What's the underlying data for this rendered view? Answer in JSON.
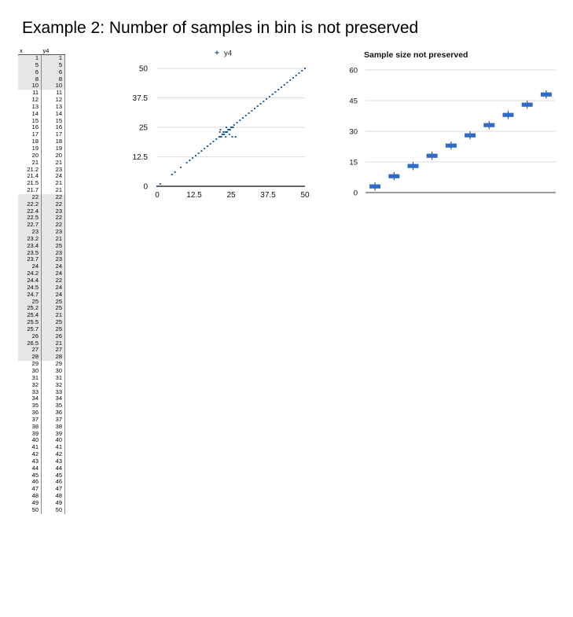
{
  "title": "Example 2: Number of samples in bin is not preserved",
  "table": {
    "headers": [
      "x",
      "y4"
    ],
    "highlight_ranges": [
      [
        0,
        4
      ],
      [
        20,
        43
      ]
    ],
    "rows": [
      [
        "1",
        "1"
      ],
      [
        "5",
        "5"
      ],
      [
        "6",
        "6"
      ],
      [
        "8",
        "8"
      ],
      [
        "10",
        "10"
      ],
      [
        "11",
        "11"
      ],
      [
        "12",
        "12"
      ],
      [
        "13",
        "13"
      ],
      [
        "14",
        "14"
      ],
      [
        "15",
        "15"
      ],
      [
        "16",
        "16"
      ],
      [
        "17",
        "17"
      ],
      [
        "18",
        "18"
      ],
      [
        "19",
        "19"
      ],
      [
        "20",
        "20"
      ],
      [
        "21",
        "21"
      ],
      [
        "21.2",
        "23"
      ],
      [
        "21.4",
        "24"
      ],
      [
        "21.5",
        "21"
      ],
      [
        "21.7",
        "21"
      ],
      [
        "22",
        "22"
      ],
      [
        "22.2",
        "22"
      ],
      [
        "22.4",
        "23"
      ],
      [
        "22.5",
        "22"
      ],
      [
        "22.7",
        "22"
      ],
      [
        "23",
        "23"
      ],
      [
        "23.2",
        "21"
      ],
      [
        "23.4",
        "25"
      ],
      [
        "23.5",
        "23"
      ],
      [
        "23.7",
        "23"
      ],
      [
        "24",
        "24"
      ],
      [
        "24.2",
        "24"
      ],
      [
        "24.4",
        "22"
      ],
      [
        "24.5",
        "24"
      ],
      [
        "24.7",
        "24"
      ],
      [
        "25",
        "25"
      ],
      [
        "25.2",
        "25"
      ],
      [
        "25.4",
        "21"
      ],
      [
        "25.5",
        "25"
      ],
      [
        "25.7",
        "25"
      ],
      [
        "26",
        "26"
      ],
      [
        "26.5",
        "21"
      ],
      [
        "27",
        "27"
      ],
      [
        "28",
        "28"
      ],
      [
        "29",
        "29"
      ],
      [
        "30",
        "30"
      ],
      [
        "31",
        "31"
      ],
      [
        "32",
        "32"
      ],
      [
        "33",
        "33"
      ],
      [
        "34",
        "34"
      ],
      [
        "35",
        "35"
      ],
      [
        "36",
        "36"
      ],
      [
        "37",
        "37"
      ],
      [
        "38",
        "38"
      ],
      [
        "39",
        "39"
      ],
      [
        "40",
        "40"
      ],
      [
        "41",
        "41"
      ],
      [
        "42",
        "42"
      ],
      [
        "43",
        "43"
      ],
      [
        "44",
        "44"
      ],
      [
        "45",
        "45"
      ],
      [
        "46",
        "46"
      ],
      [
        "47",
        "47"
      ],
      [
        "48",
        "48"
      ],
      [
        "49",
        "49"
      ],
      [
        "50",
        "50"
      ]
    ]
  },
  "chart_data": [
    {
      "type": "scatter",
      "title": "",
      "legend": {
        "position": "top",
        "entries": [
          "y4"
        ]
      },
      "series": [
        {
          "name": "y4",
          "color": "#1f5fa0",
          "points": [
            [
              0,
              0
            ],
            [
              1,
              1
            ],
            [
              5,
              5
            ],
            [
              6,
              6
            ],
            [
              8,
              8
            ],
            [
              10,
              10
            ],
            [
              11,
              11
            ],
            [
              12,
              12
            ],
            [
              13,
              13
            ],
            [
              14,
              14
            ],
            [
              15,
              15
            ],
            [
              16,
              16
            ],
            [
              17,
              17
            ],
            [
              18,
              18
            ],
            [
              19,
              19
            ],
            [
              20,
              20
            ],
            [
              21,
              21
            ],
            [
              21.2,
              23
            ],
            [
              21.4,
              24
            ],
            [
              21.5,
              21
            ],
            [
              21.7,
              21
            ],
            [
              22,
              22
            ],
            [
              22.2,
              22
            ],
            [
              22.4,
              23
            ],
            [
              22.5,
              22
            ],
            [
              22.7,
              22
            ],
            [
              23,
              23
            ],
            [
              23.2,
              21
            ],
            [
              23.4,
              25
            ],
            [
              23.5,
              23
            ],
            [
              23.7,
              23
            ],
            [
              24,
              24
            ],
            [
              24.2,
              24
            ],
            [
              24.4,
              22
            ],
            [
              24.5,
              24
            ],
            [
              24.7,
              24
            ],
            [
              25,
              25
            ],
            [
              25.2,
              25
            ],
            [
              25.4,
              21
            ],
            [
              25.5,
              25
            ],
            [
              25.7,
              25
            ],
            [
              26,
              26
            ],
            [
              26.5,
              21
            ],
            [
              27,
              27
            ],
            [
              28,
              28
            ],
            [
              29,
              29
            ],
            [
              30,
              30
            ],
            [
              31,
              31
            ],
            [
              32,
              32
            ],
            [
              33,
              33
            ],
            [
              34,
              34
            ],
            [
              35,
              35
            ],
            [
              36,
              36
            ],
            [
              37,
              37
            ],
            [
              38,
              38
            ],
            [
              39,
              39
            ],
            [
              40,
              40
            ],
            [
              41,
              41
            ],
            [
              42,
              42
            ],
            [
              43,
              43
            ],
            [
              44,
              44
            ],
            [
              45,
              45
            ],
            [
              46,
              46
            ],
            [
              47,
              47
            ],
            [
              48,
              48
            ],
            [
              49,
              49
            ],
            [
              50,
              50
            ]
          ]
        }
      ],
      "xlim": [
        0,
        50
      ],
      "ylim": [
        0,
        50
      ],
      "xticks": [
        "0",
        "12.5",
        "25",
        "37.5",
        "50"
      ],
      "yticks": [
        "0",
        "12.5",
        "25",
        "37.5",
        "50"
      ],
      "grid": true
    },
    {
      "type": "box",
      "title": "Sample size not preserved",
      "color": "#2f6bc9",
      "ylim": [
        0,
        60
      ],
      "yticks": [
        "0",
        "15",
        "30",
        "45",
        "60"
      ],
      "grid": true,
      "boxes": [
        {
          "low": 1,
          "q1": 2,
          "q3": 4,
          "high": 5
        },
        {
          "low": 6,
          "q1": 7,
          "q3": 9,
          "high": 10
        },
        {
          "low": 11,
          "q1": 12,
          "q3": 14,
          "high": 15
        },
        {
          "low": 16,
          "q1": 17,
          "q3": 19,
          "high": 20
        },
        {
          "low": 21,
          "q1": 22,
          "q3": 24,
          "high": 25
        },
        {
          "low": 26,
          "q1": 27,
          "q3": 29,
          "high": 30
        },
        {
          "low": 31,
          "q1": 32,
          "q3": 34,
          "high": 35
        },
        {
          "low": 36,
          "q1": 37,
          "q3": 39,
          "high": 40
        },
        {
          "low": 41,
          "q1": 42,
          "q3": 44,
          "high": 45
        },
        {
          "low": 46,
          "q1": 47,
          "q3": 49,
          "high": 50
        }
      ]
    }
  ]
}
